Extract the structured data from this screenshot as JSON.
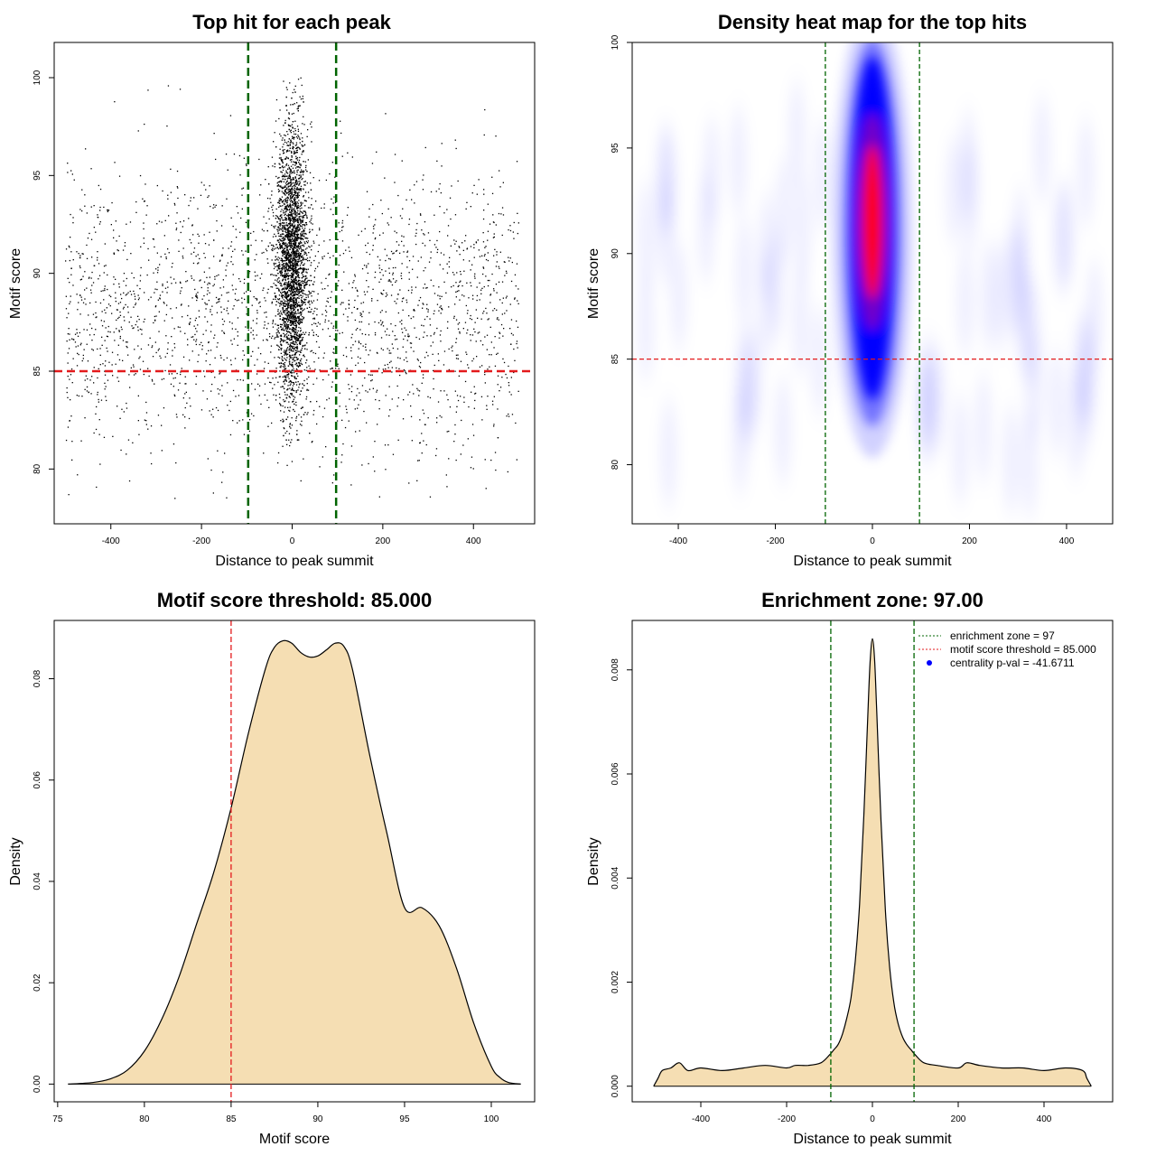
{
  "chart_data": [
    {
      "type": "scatter",
      "title": "Top hit for each peak",
      "xlabel": "Distance to peak summit",
      "ylabel": "Motif score",
      "xlim": [
        -525,
        535
      ],
      "ylim": [
        77.2,
        101.8
      ],
      "x_ticks": [
        -400,
        -200,
        0,
        200,
        400
      ],
      "y_ticks": [
        80,
        85,
        90,
        95,
        100
      ],
      "reference_lines": [
        {
          "axis": "x",
          "value": -97,
          "color": "#006400",
          "style": "dashed"
        },
        {
          "axis": "x",
          "value": 97,
          "color": "#006400",
          "style": "dashed"
        },
        {
          "axis": "y",
          "value": 85,
          "color": "#e31a1c",
          "style": "dashed"
        }
      ],
      "point_color": "#000000",
      "summary": {
        "background_x_range": [
          -500,
          500
        ],
        "background_y_range": [
          78,
          100
        ],
        "central_cluster_x_range": [
          -50,
          50
        ],
        "central_cluster_y_range": [
          81,
          100
        ]
      }
    },
    {
      "type": "heatmap",
      "title": "Density heat map for the top hits",
      "xlabel": "Distance to peak summit",
      "ylabel": "Motif score",
      "xlim": [
        -495,
        495
      ],
      "ylim": [
        77.2,
        100
      ],
      "x_ticks": [
        -400,
        -200,
        0,
        200,
        400
      ],
      "y_ticks": [
        80,
        85,
        90,
        95,
        100
      ],
      "reference_lines": [
        {
          "axis": "x",
          "value": -97,
          "color": "#006400",
          "style": "dashed"
        },
        {
          "axis": "x",
          "value": 97,
          "color": "#006400",
          "style": "dashed"
        },
        {
          "axis": "y",
          "value": 85,
          "color": "#e31a1c",
          "style": "dashed"
        }
      ],
      "color_scale": [
        "#ffffff",
        "#0000ff",
        "#ff0000"
      ],
      "peak_density": {
        "x": 0,
        "y": 91.5
      }
    },
    {
      "type": "area",
      "title": "Motif score threshold: 85.000",
      "xlabel": "Motif score",
      "ylabel": "Density",
      "xlim": [
        74.8,
        102.5
      ],
      "ylim": [
        -0.0035,
        0.0915
      ],
      "x_ticks": [
        75,
        80,
        85,
        90,
        95,
        100
      ],
      "y_ticks": [
        0.0,
        0.02,
        0.04,
        0.06,
        0.08
      ],
      "y_tick_labels": [
        "0.00",
        "0.02",
        "0.04",
        "0.06",
        "0.08"
      ],
      "fill_color": "#f5deb3",
      "reference_lines": [
        {
          "axis": "x",
          "value": 85,
          "color": "#e31a1c",
          "style": "dashed"
        }
      ],
      "x": [
        75.6,
        77,
        78,
        79,
        80,
        81,
        82,
        83,
        84,
        85,
        86,
        87,
        87.5,
        88,
        88.5,
        89,
        89.5,
        90,
        90.5,
        91,
        91.5,
        92,
        93,
        94,
        95,
        96,
        97,
        98,
        99,
        100,
        100.5,
        101,
        101.7
      ],
      "y": [
        0.0,
        0.0003,
        0.001,
        0.0027,
        0.0065,
        0.0128,
        0.0212,
        0.0315,
        0.0418,
        0.0545,
        0.0693,
        0.0822,
        0.0862,
        0.0875,
        0.087,
        0.0852,
        0.0843,
        0.0845,
        0.0857,
        0.087,
        0.0864,
        0.0818,
        0.0648,
        0.0492,
        0.0348,
        0.0348,
        0.0312,
        0.0228,
        0.0119,
        0.0035,
        0.0013,
        0.0003,
        0.0
      ]
    },
    {
      "type": "area",
      "title": "Enrichment zone: 97.00",
      "xlabel": "Distance to peak summit",
      "ylabel": "Density",
      "xlim": [
        -560,
        560
      ],
      "ylim": [
        -0.0003,
        0.00895
      ],
      "x_ticks": [
        -400,
        -200,
        0,
        200,
        400
      ],
      "y_ticks": [
        0.0,
        0.002,
        0.004,
        0.006,
        0.008
      ],
      "y_tick_labels": [
        "0.000",
        "0.002",
        "0.004",
        "0.006",
        "0.008"
      ],
      "fill_color": "#f5deb3",
      "reference_lines": [
        {
          "axis": "x",
          "value": -97,
          "color": "#006400",
          "style": "dashed"
        },
        {
          "axis": "x",
          "value": 97,
          "color": "#006400",
          "style": "dashed"
        }
      ],
      "x": [
        -510,
        -500,
        -490,
        -470,
        -450,
        -430,
        -400,
        -350,
        -300,
        -250,
        -200,
        -180,
        -150,
        -120,
        -100,
        -90,
        -80,
        -70,
        -60,
        -50,
        -40,
        -30,
        -20,
        -10,
        -5,
        0,
        5,
        10,
        20,
        30,
        40,
        50,
        60,
        70,
        80,
        90,
        100,
        120,
        150,
        200,
        220,
        250,
        300,
        350,
        400,
        450,
        490,
        500,
        510
      ],
      "y": [
        0.0,
        0.00015,
        0.0003,
        0.00035,
        0.00045,
        0.0003,
        0.00035,
        0.0003,
        0.00035,
        0.0004,
        0.00035,
        0.0004,
        0.0004,
        0.00045,
        0.0006,
        0.0007,
        0.0008,
        0.001,
        0.0013,
        0.0017,
        0.0024,
        0.0035,
        0.0052,
        0.0073,
        0.0082,
        0.0086,
        0.0082,
        0.0072,
        0.0051,
        0.0034,
        0.0023,
        0.0016,
        0.0012,
        0.00095,
        0.0008,
        0.0007,
        0.0006,
        0.00045,
        0.0004,
        0.00035,
        0.00045,
        0.0004,
        0.00035,
        0.00035,
        0.0003,
        0.00035,
        0.0003,
        0.00015,
        0.0
      ],
      "legend": {
        "placement": "top-right",
        "entries": [
          {
            "label": "enrichment zone = 97",
            "color": "#006400",
            "style": "dotted-line"
          },
          {
            "label": "motif score threshold = 85.000",
            "color": "#e31a1c",
            "style": "dotted-line"
          },
          {
            "label": "centrality p-val = -41.6711",
            "color": "#0000ff",
            "style": "point"
          }
        ]
      }
    }
  ]
}
